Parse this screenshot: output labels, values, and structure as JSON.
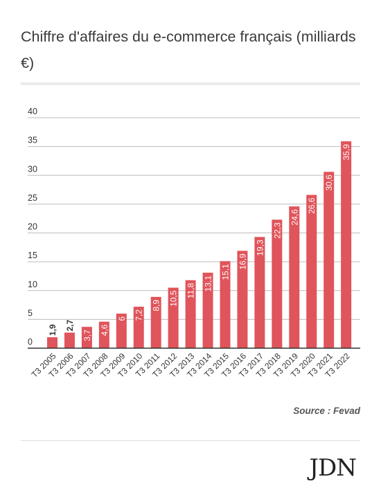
{
  "title": "Chiffre d'affaires du e-commerce français (milliards €)",
  "source": "Source : Fevad",
  "logo": "JDN",
  "colors": {
    "bar": "#e0545b",
    "grid": "#bbbbbb",
    "axis": "#333333"
  },
  "chart_data": {
    "type": "bar",
    "title": "Chiffre d'affaires du e-commerce français (milliards €)",
    "xlabel": "",
    "ylabel": "",
    "ylim": [
      0,
      40
    ],
    "yticks": [
      0,
      5,
      10,
      15,
      20,
      25,
      30,
      35,
      40
    ],
    "grid": true,
    "categories": [
      "T3 2005",
      "T3 2006",
      "T3 2007",
      "T3 2008",
      "T3 2009",
      "T3 2010",
      "T3 2011",
      "T3 2012",
      "T3 2013",
      "T3 2014",
      "T3 2015",
      "T3 2016",
      "T3 2017",
      "T3 2018",
      "T3 2019",
      "T3 2020",
      "T3 2021",
      "T3 2022"
    ],
    "values": [
      1.9,
      2.7,
      3.7,
      4.6,
      6,
      7.2,
      8.9,
      10.5,
      11.8,
      13.1,
      15.1,
      16.9,
      19.3,
      22.3,
      24.6,
      26.6,
      30.6,
      35.9
    ],
    "labels": [
      "1,9",
      "2,7",
      "3,7",
      "4,6",
      "6",
      "7,2",
      "8,9",
      "10,5",
      "11,8",
      "13,1",
      "15,1",
      "16,9",
      "19,3",
      "22,3",
      "24,6",
      "26,6",
      "30,6",
      "35,9"
    ]
  }
}
